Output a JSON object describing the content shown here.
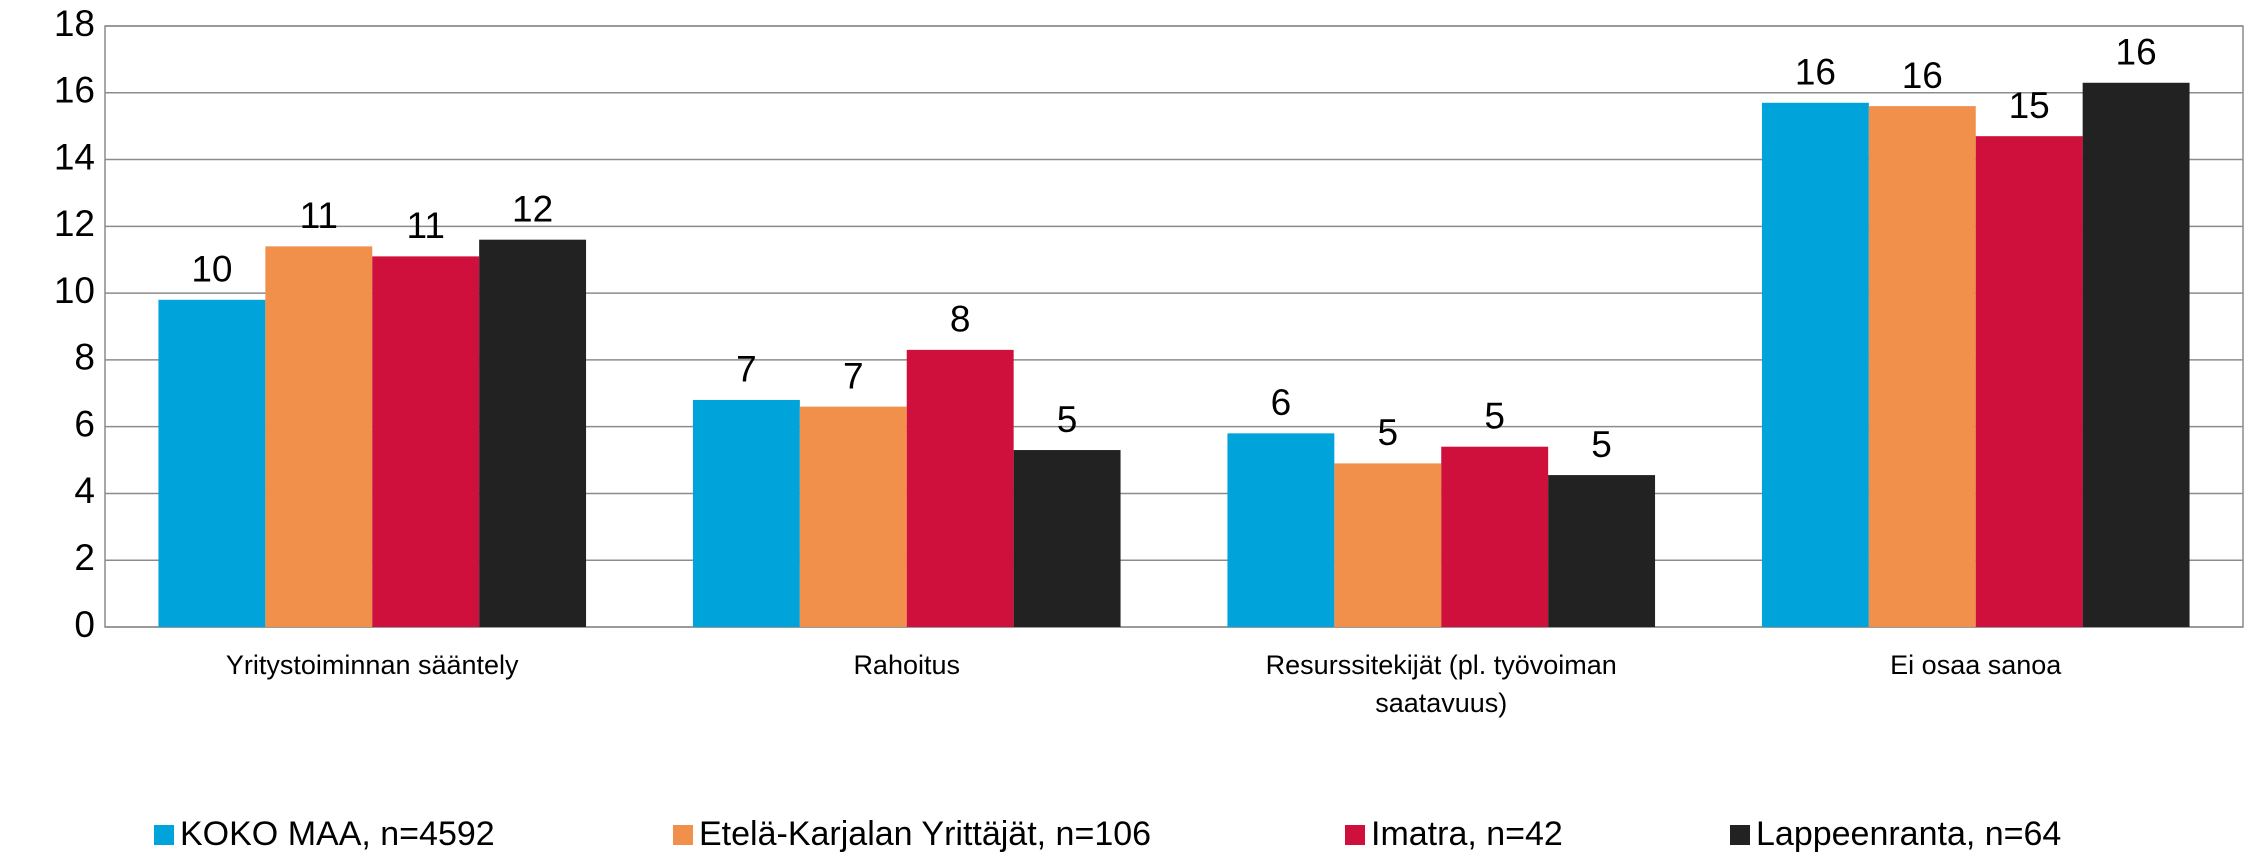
{
  "chart_data": {
    "type": "bar",
    "categories": [
      "Yritystoiminnan sääntely",
      "Rahoitus",
      "Resurssitekijät (pl. työvoiman saatavuus)",
      "Ei osaa sanoa"
    ],
    "series": [
      {
        "name": "KOKO MAA, n=4592",
        "color": "#00a3da",
        "values": [
          9.8,
          6.8,
          5.8,
          15.7
        ],
        "value_labels": [
          "10",
          "7",
          "6",
          "16"
        ]
      },
      {
        "name": "Etelä-Karjalan Yrittäjät, n=106",
        "color": "#f0904a",
        "values": [
          11.4,
          6.6,
          4.9,
          15.6
        ],
        "value_labels": [
          "11",
          "7",
          "5",
          "16"
        ]
      },
      {
        "name": "Imatra, n=42",
        "color": "#cf0f3c",
        "values": [
          11.1,
          8.3,
          5.4,
          14.7
        ],
        "value_labels": [
          "11",
          "8",
          "5",
          "15"
        ]
      },
      {
        "name": "Lappeenranta, n=64",
        "color": "#222222",
        "values": [
          11.6,
          5.3,
          4.55,
          16.3
        ],
        "value_labels": [
          "12",
          "5",
          "5",
          "16"
        ]
      }
    ],
    "ylim": [
      0,
      18
    ],
    "yticks": [
      0,
      2,
      4,
      6,
      8,
      10,
      12,
      14,
      16,
      18
    ],
    "grid": true,
    "legend": "bottom"
  }
}
